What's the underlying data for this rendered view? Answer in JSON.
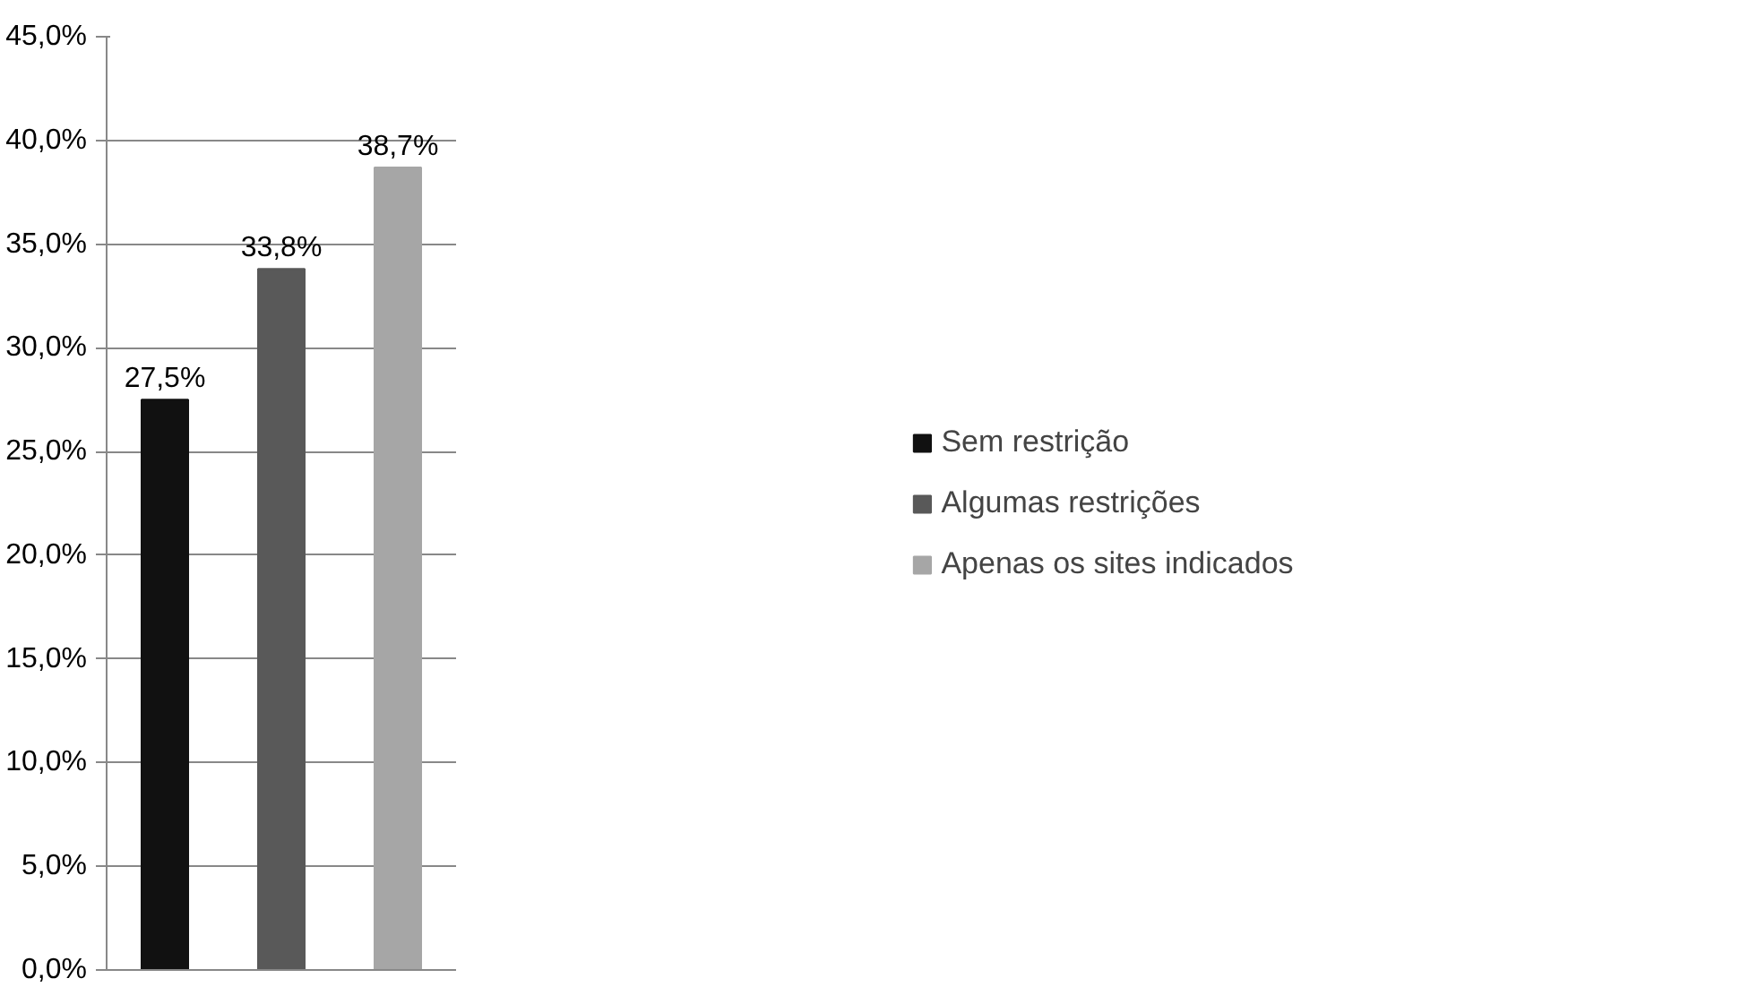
{
  "chart_data": {
    "type": "bar",
    "categories": [
      null
    ],
    "series": [
      {
        "name": "Sem restrição",
        "color": "#111111",
        "values": [
          27.5
        ],
        "value_labels": [
          "27,5%"
        ]
      },
      {
        "name": "Algumas restrições",
        "color": "#595959",
        "values": [
          33.8
        ],
        "value_labels": [
          "33,8%"
        ]
      },
      {
        "name": "Apenas os sites indicados",
        "color": "#a6a6a6",
        "values": [
          38.7
        ],
        "value_labels": [
          "38,7%"
        ]
      }
    ],
    "ylim": [
      0,
      45
    ],
    "yticks": [
      {
        "value": 0,
        "label": "0,0%"
      },
      {
        "value": 5,
        "label": "5,0%"
      },
      {
        "value": 10,
        "label": "10,0%"
      },
      {
        "value": 15,
        "label": "15,0%"
      },
      {
        "value": 20,
        "label": "20,0%"
      },
      {
        "value": 25,
        "label": "25,0%"
      },
      {
        "value": 30,
        "label": "30,0%"
      },
      {
        "value": 35,
        "label": "35,0%"
      },
      {
        "value": 40,
        "label": "40,0%"
      },
      {
        "value": 45,
        "label": "45,0%"
      }
    ],
    "grid": "y",
    "legend": "right"
  }
}
